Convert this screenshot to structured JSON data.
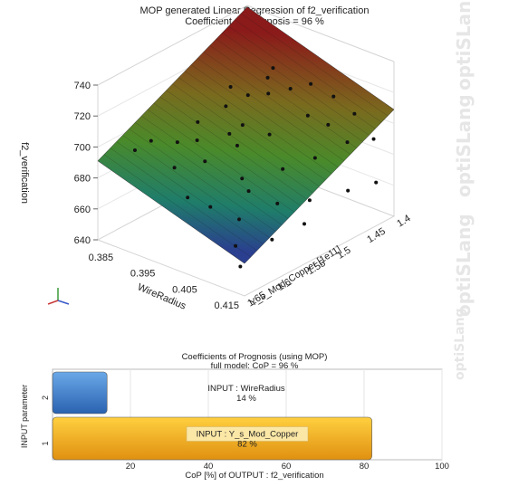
{
  "title": "MOP generated Linear Regression  of f2_verification",
  "subtitle": "Coefficient of Prognosis = 96 %",
  "watermark": "optiSLang",
  "colors": {
    "surface_high": "#8b1a1a",
    "surface_mid": "#4a8a2a",
    "surface_low": "#2a3f8f",
    "bar_blue": "#3a78c8",
    "bar_gold": "#f0b020"
  },
  "chart_data": [
    {
      "type": "surface3d",
      "title": "MOP generated Linear Regression  of f2_verification",
      "subtitle": "Coefficient of Prognosis = 96 %",
      "zlabel": "f2_verification",
      "xlabel": "WireRadius",
      "ylabel": "Y_s_Mod_Copper [1e11]",
      "z_ticks": [
        "640",
        "660",
        "680",
        "700",
        "720",
        "740"
      ],
      "x_ticks": [
        "0.385",
        "0.395",
        "0.405",
        "0.415"
      ],
      "y_ticks": [
        "1.65",
        "1.6",
        "1.55",
        "1.5",
        "1.45",
        "1.4"
      ],
      "zlim": [
        640,
        740
      ],
      "points": [
        {
          "x": 0.386,
          "y": 1.63,
          "z": 700
        },
        {
          "x": 0.387,
          "y": 1.61,
          "z": 703
        },
        {
          "x": 0.389,
          "y": 1.58,
          "z": 698
        },
        {
          "x": 0.391,
          "y": 1.56,
          "z": 709
        },
        {
          "x": 0.392,
          "y": 1.52,
          "z": 712
        },
        {
          "x": 0.393,
          "y": 1.49,
          "z": 714
        },
        {
          "x": 0.395,
          "y": 1.47,
          "z": 713
        },
        {
          "x": 0.396,
          "y": 1.44,
          "z": 711
        },
        {
          "x": 0.388,
          "y": 1.54,
          "z": 690
        },
        {
          "x": 0.39,
          "y": 1.5,
          "z": 688
        },
        {
          "x": 0.394,
          "y": 1.62,
          "z": 695
        },
        {
          "x": 0.397,
          "y": 1.59,
          "z": 696
        },
        {
          "x": 0.399,
          "y": 1.55,
          "z": 700
        },
        {
          "x": 0.401,
          "y": 1.51,
          "z": 701
        },
        {
          "x": 0.403,
          "y": 1.46,
          "z": 705
        },
        {
          "x": 0.398,
          "y": 1.42,
          "z": 712
        },
        {
          "x": 0.402,
          "y": 1.41,
          "z": 706
        },
        {
          "x": 0.404,
          "y": 1.63,
          "z": 682
        },
        {
          "x": 0.406,
          "y": 1.58,
          "z": 684
        },
        {
          "x": 0.407,
          "y": 1.53,
          "z": 689
        },
        {
          "x": 0.409,
          "y": 1.49,
          "z": 690
        },
        {
          "x": 0.411,
          "y": 1.45,
          "z": 694
        },
        {
          "x": 0.413,
          "y": 1.42,
          "z": 692
        },
        {
          "x": 0.408,
          "y": 1.61,
          "z": 674
        },
        {
          "x": 0.41,
          "y": 1.56,
          "z": 676
        },
        {
          "x": 0.412,
          "y": 1.52,
          "z": 672
        },
        {
          "x": 0.414,
          "y": 1.47,
          "z": 670
        },
        {
          "x": 0.415,
          "y": 1.43,
          "z": 668
        },
        {
          "x": 0.405,
          "y": 1.44,
          "z": 697
        },
        {
          "x": 0.4,
          "y": 1.64,
          "z": 686
        },
        {
          "x": 0.392,
          "y": 1.45,
          "z": 716
        },
        {
          "x": 0.396,
          "y": 1.52,
          "z": 704
        },
        {
          "x": 0.386,
          "y": 1.47,
          "z": 708
        },
        {
          "x": 0.389,
          "y": 1.42,
          "z": 713
        },
        {
          "x": 0.41,
          "y": 1.63,
          "z": 663
        },
        {
          "x": 0.413,
          "y": 1.59,
          "z": 662
        },
        {
          "x": 0.415,
          "y": 1.55,
          "z": 666
        },
        {
          "x": 0.414,
          "y": 1.65,
          "z": 658
        },
        {
          "x": 0.407,
          "y": 1.41,
          "z": 700
        },
        {
          "x": 0.403,
          "y": 1.57,
          "z": 687
        }
      ]
    },
    {
      "type": "bar",
      "orientation": "horizontal",
      "title": "Coefficients of Prognosis (using MOP)",
      "subtitle": "full model: CoP = 96 %",
      "xlabel": "CoP [%] of OUTPUT : f2_verification",
      "ylabel": "INPUT parameter",
      "xlim": [
        0,
        100
      ],
      "x_ticks": [
        "20",
        "40",
        "60",
        "80",
        "100"
      ],
      "categories": [
        "2",
        "1"
      ],
      "bars": [
        {
          "category": "2",
          "name": "INPUT : WireRadius",
          "label": "14 %",
          "value": 14
        },
        {
          "category": "1",
          "name": "INPUT : Y_s_Mod_Copper",
          "label": "82 %",
          "value": 82
        }
      ]
    }
  ]
}
